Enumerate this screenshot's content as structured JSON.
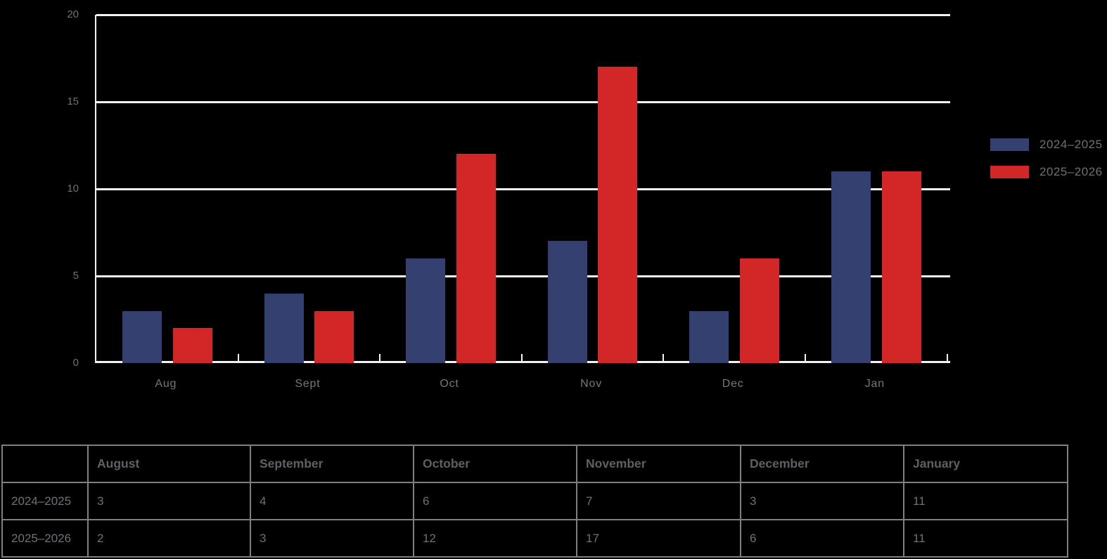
{
  "chart_data": {
    "type": "bar",
    "categories": [
      "Aug",
      "Sept",
      "Oct",
      "Nov",
      "Dec",
      "Jan"
    ],
    "series": [
      {
        "name": "2024–2025",
        "color": "#344170",
        "values": [
          3,
          4,
          6,
          7,
          3,
          11
        ]
      },
      {
        "name": "2025–2026",
        "color": "#d22627",
        "values": [
          2,
          3,
          12,
          17,
          6,
          11
        ]
      }
    ],
    "title": "",
    "xlabel": "",
    "ylabel": "",
    "ylim": [
      0,
      20
    ],
    "yticks": [
      0,
      5,
      10,
      15,
      20
    ],
    "grid": true,
    "legend_position": "right"
  },
  "table": {
    "columns": [
      "August",
      "September",
      "October",
      "November",
      "December",
      "January"
    ],
    "rows": [
      {
        "label": "2024–2025",
        "values": [
          "3",
          "4",
          "6",
          "7",
          "3",
          "11"
        ]
      },
      {
        "label": "2025–2026",
        "values": [
          "2",
          "3",
          "12",
          "17",
          "6",
          "11"
        ]
      }
    ]
  },
  "colors": {
    "background": "#000000",
    "series_blue": "#344170",
    "series_red": "#d22627",
    "grid_line": "#f4f2f3",
    "axis_text": "#6f7073",
    "table_border": "#7d8083",
    "table_header_text": "#5d6165",
    "table_text": "#6e7175"
  }
}
